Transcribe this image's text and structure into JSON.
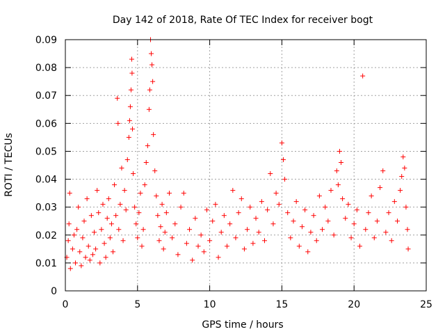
{
  "chart_data": {
    "type": "scatter",
    "title": "Day 142 of 2018, Rate Of TEC Index for receiver bogt",
    "xlabel": "GPS time / hours",
    "ylabel": "ROTI / TECUs",
    "xlim": [
      0,
      25
    ],
    "ylim": [
      0,
      0.09
    ],
    "x_ticks": [
      0,
      5,
      10,
      15,
      20,
      25
    ],
    "y_ticks": [
      0,
      0.01,
      0.02,
      0.03,
      0.04,
      0.05,
      0.06,
      0.07,
      0.08,
      0.09
    ],
    "x_tick_labels": [
      "0",
      "5",
      "10",
      "15",
      "20",
      "25"
    ],
    "y_tick_labels": [
      "0",
      "0.01",
      "0.02",
      "0.03",
      "0.04",
      "0.05",
      "0.06",
      "0.07",
      "0.08",
      "0.09"
    ],
    "grid": true,
    "marker": "+",
    "color": "#ff0000",
    "series": [
      {
        "name": "ROTI",
        "points": [
          [
            0.1,
            0.012
          ],
          [
            0.2,
            0.018
          ],
          [
            0.25,
            0.024
          ],
          [
            0.3,
            0.035
          ],
          [
            0.35,
            0.008
          ],
          [
            0.5,
            0.015
          ],
          [
            0.6,
            0.02
          ],
          [
            0.7,
            0.01
          ],
          [
            0.8,
            0.022
          ],
          [
            0.9,
            0.03
          ],
          [
            1.0,
            0.014
          ],
          [
            1.1,
            0.009
          ],
          [
            1.2,
            0.019
          ],
          [
            1.3,
            0.025
          ],
          [
            1.4,
            0.012
          ],
          [
            1.5,
            0.033
          ],
          [
            1.6,
            0.016
          ],
          [
            1.7,
            0.011
          ],
          [
            1.8,
            0.027
          ],
          [
            1.9,
            0.013
          ],
          [
            2.0,
            0.021
          ],
          [
            2.1,
            0.015
          ],
          [
            2.2,
            0.036
          ],
          [
            2.3,
            0.028
          ],
          [
            2.4,
            0.01
          ],
          [
            2.5,
            0.022
          ],
          [
            2.6,
            0.031
          ],
          [
            2.7,
            0.017
          ],
          [
            2.8,
            0.012
          ],
          [
            2.9,
            0.026
          ],
          [
            3.0,
            0.033
          ],
          [
            3.1,
            0.019
          ],
          [
            3.2,
            0.024
          ],
          [
            3.3,
            0.014
          ],
          [
            3.4,
            0.038
          ],
          [
            3.5,
            0.027
          ],
          [
            3.6,
            0.069
          ],
          [
            3.65,
            0.06
          ],
          [
            3.7,
            0.022
          ],
          [
            3.8,
            0.031
          ],
          [
            3.9,
            0.044
          ],
          [
            4.0,
            0.018
          ],
          [
            4.1,
            0.036
          ],
          [
            4.2,
            0.029
          ],
          [
            4.3,
            0.047
          ],
          [
            4.4,
            0.055
          ],
          [
            4.45,
            0.061
          ],
          [
            4.5,
            0.066
          ],
          [
            4.55,
            0.072
          ],
          [
            4.6,
            0.083
          ],
          [
            4.62,
            0.078
          ],
          [
            4.65,
            0.058
          ],
          [
            4.7,
            0.042
          ],
          [
            4.8,
            0.03
          ],
          [
            4.9,
            0.024
          ],
          [
            5.0,
            0.019
          ],
          [
            5.1,
            0.028
          ],
          [
            5.2,
            0.035
          ],
          [
            5.3,
            0.016
          ],
          [
            5.4,
            0.022
          ],
          [
            5.5,
            0.038
          ],
          [
            5.6,
            0.046
          ],
          [
            5.7,
            0.052
          ],
          [
            5.8,
            0.065
          ],
          [
            5.85,
            0.072
          ],
          [
            5.9,
            0.09
          ],
          [
            5.95,
            0.085
          ],
          [
            6.0,
            0.081
          ],
          [
            6.05,
            0.075
          ],
          [
            6.1,
            0.056
          ],
          [
            6.2,
            0.043
          ],
          [
            6.3,
            0.034
          ],
          [
            6.4,
            0.027
          ],
          [
            6.5,
            0.018
          ],
          [
            6.6,
            0.023
          ],
          [
            6.7,
            0.031
          ],
          [
            6.8,
            0.015
          ],
          [
            6.9,
            0.021
          ],
          [
            7.0,
            0.028
          ],
          [
            7.2,
            0.035
          ],
          [
            7.4,
            0.019
          ],
          [
            7.6,
            0.024
          ],
          [
            7.8,
            0.013
          ],
          [
            8.0,
            0.03
          ],
          [
            8.2,
            0.035
          ],
          [
            8.4,
            0.017
          ],
          [
            8.6,
            0.022
          ],
          [
            8.8,
            0.011
          ],
          [
            9.0,
            0.026
          ],
          [
            9.2,
            0.016
          ],
          [
            9.4,
            0.02
          ],
          [
            9.6,
            0.014
          ],
          [
            9.8,
            0.029
          ],
          [
            10.0,
            0.018
          ],
          [
            10.2,
            0.025
          ],
          [
            10.4,
            0.031
          ],
          [
            10.6,
            0.012
          ],
          [
            10.8,
            0.021
          ],
          [
            11.0,
            0.027
          ],
          [
            11.2,
            0.016
          ],
          [
            11.4,
            0.024
          ],
          [
            11.6,
            0.036
          ],
          [
            11.8,
            0.019
          ],
          [
            12.0,
            0.028
          ],
          [
            12.2,
            0.033
          ],
          [
            12.4,
            0.015
          ],
          [
            12.6,
            0.022
          ],
          [
            12.8,
            0.03
          ],
          [
            13.0,
            0.017
          ],
          [
            13.2,
            0.026
          ],
          [
            13.4,
            0.021
          ],
          [
            13.6,
            0.032
          ],
          [
            13.8,
            0.018
          ],
          [
            14.0,
            0.029
          ],
          [
            14.2,
            0.042
          ],
          [
            14.4,
            0.024
          ],
          [
            14.6,
            0.035
          ],
          [
            14.8,
            0.031
          ],
          [
            15.0,
            0.053
          ],
          [
            15.1,
            0.047
          ],
          [
            15.2,
            0.04
          ],
          [
            15.4,
            0.028
          ],
          [
            15.6,
            0.019
          ],
          [
            15.8,
            0.025
          ],
          [
            16.0,
            0.032
          ],
          [
            16.2,
            0.016
          ],
          [
            16.4,
            0.023
          ],
          [
            16.6,
            0.029
          ],
          [
            16.8,
            0.014
          ],
          [
            17.0,
            0.021
          ],
          [
            17.2,
            0.027
          ],
          [
            17.4,
            0.018
          ],
          [
            17.6,
            0.034
          ],
          [
            17.8,
            0.022
          ],
          [
            18.0,
            0.03
          ],
          [
            18.2,
            0.025
          ],
          [
            18.4,
            0.036
          ],
          [
            18.6,
            0.02
          ],
          [
            18.8,
            0.043
          ],
          [
            18.9,
            0.038
          ],
          [
            19.0,
            0.05
          ],
          [
            19.1,
            0.046
          ],
          [
            19.2,
            0.033
          ],
          [
            19.4,
            0.026
          ],
          [
            19.6,
            0.031
          ],
          [
            19.8,
            0.019
          ],
          [
            20.0,
            0.024
          ],
          [
            20.2,
            0.029
          ],
          [
            20.4,
            0.016
          ],
          [
            20.6,
            0.077
          ],
          [
            20.8,
            0.022
          ],
          [
            21.0,
            0.028
          ],
          [
            21.2,
            0.034
          ],
          [
            21.4,
            0.019
          ],
          [
            21.6,
            0.025
          ],
          [
            21.8,
            0.037
          ],
          [
            22.0,
            0.043
          ],
          [
            22.2,
            0.021
          ],
          [
            22.4,
            0.028
          ],
          [
            22.6,
            0.018
          ],
          [
            22.8,
            0.032
          ],
          [
            23.0,
            0.025
          ],
          [
            23.2,
            0.036
          ],
          [
            23.3,
            0.041
          ],
          [
            23.4,
            0.048
          ],
          [
            23.5,
            0.044
          ],
          [
            23.6,
            0.03
          ],
          [
            23.7,
            0.022
          ],
          [
            23.75,
            0.015
          ]
        ]
      }
    ]
  }
}
